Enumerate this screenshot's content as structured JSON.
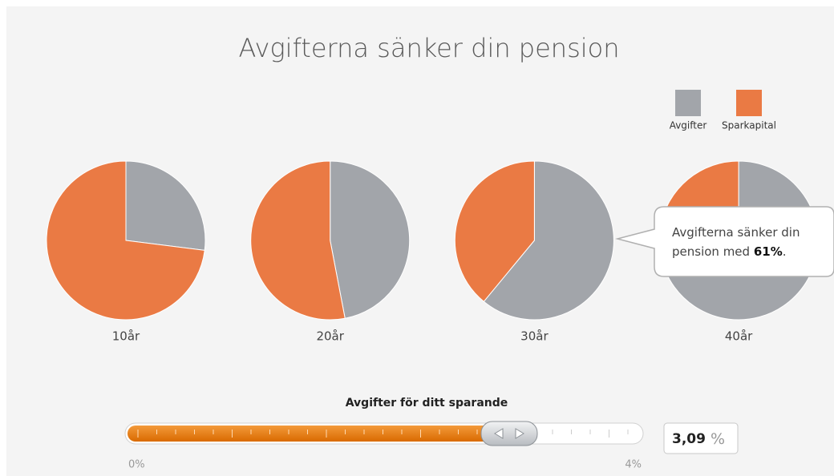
{
  "chart_data": {
    "type": "pie",
    "title": "Avgifterna sänker din pension",
    "categories": [
      "10år",
      "20år",
      "30år",
      "40år"
    ],
    "series": [
      {
        "name": "Avgifter",
        "color": "#a2a5aa",
        "values": [
          27,
          47,
          61,
          78
        ]
      },
      {
        "name": "Sparkapital",
        "color": "#ea7a44",
        "values": [
          73,
          53,
          39,
          22
        ]
      }
    ]
  },
  "tooltip": {
    "text": "Avgifterna sänker din pension med ",
    "highlight": "61%",
    "end": "."
  },
  "slider": {
    "label": "Avgifter för ditt sparande",
    "min_label": "0%",
    "max_label": "4%",
    "value": "3,09",
    "unit": "%"
  }
}
